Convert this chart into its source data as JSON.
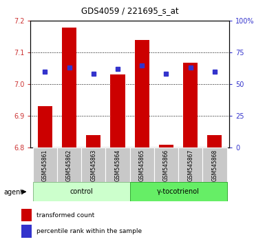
{
  "title": "GDS4059 / 221695_s_at",
  "samples": [
    "GSM545861",
    "GSM545862",
    "GSM545863",
    "GSM545864",
    "GSM545865",
    "GSM545866",
    "GSM545867",
    "GSM545868"
  ],
  "red_values": [
    6.93,
    7.178,
    6.84,
    7.03,
    7.14,
    6.81,
    7.068,
    6.84
  ],
  "blue_pct": [
    60,
    63,
    58,
    62,
    65,
    58,
    63,
    60
  ],
  "ylim_left": [
    6.8,
    7.2
  ],
  "ylim_right": [
    0,
    100
  ],
  "yticks_left": [
    6.8,
    6.9,
    7.0,
    7.1,
    7.2
  ],
  "yticks_right": [
    0,
    25,
    50,
    75,
    100
  ],
  "ytick_labels_right": [
    "0",
    "25",
    "50",
    "75",
    "100%"
  ],
  "bar_color": "#cc0000",
  "square_color": "#3333cc",
  "bar_width": 0.6,
  "base_value": 6.8,
  "background_color": "#ffffff",
  "grid_color": "#000000",
  "grid_ticks": [
    6.9,
    7.0,
    7.1
  ],
  "label_bg_color": "#c8c8c8",
  "control_color": "#ccffcc",
  "gamma_color": "#66ee66",
  "legend_items": [
    {
      "color": "#cc0000",
      "label": "transformed count"
    },
    {
      "color": "#3333cc",
      "label": "percentile rank within the sample"
    }
  ],
  "left_tick_color": "#cc3333",
  "right_tick_color": "#3333cc"
}
